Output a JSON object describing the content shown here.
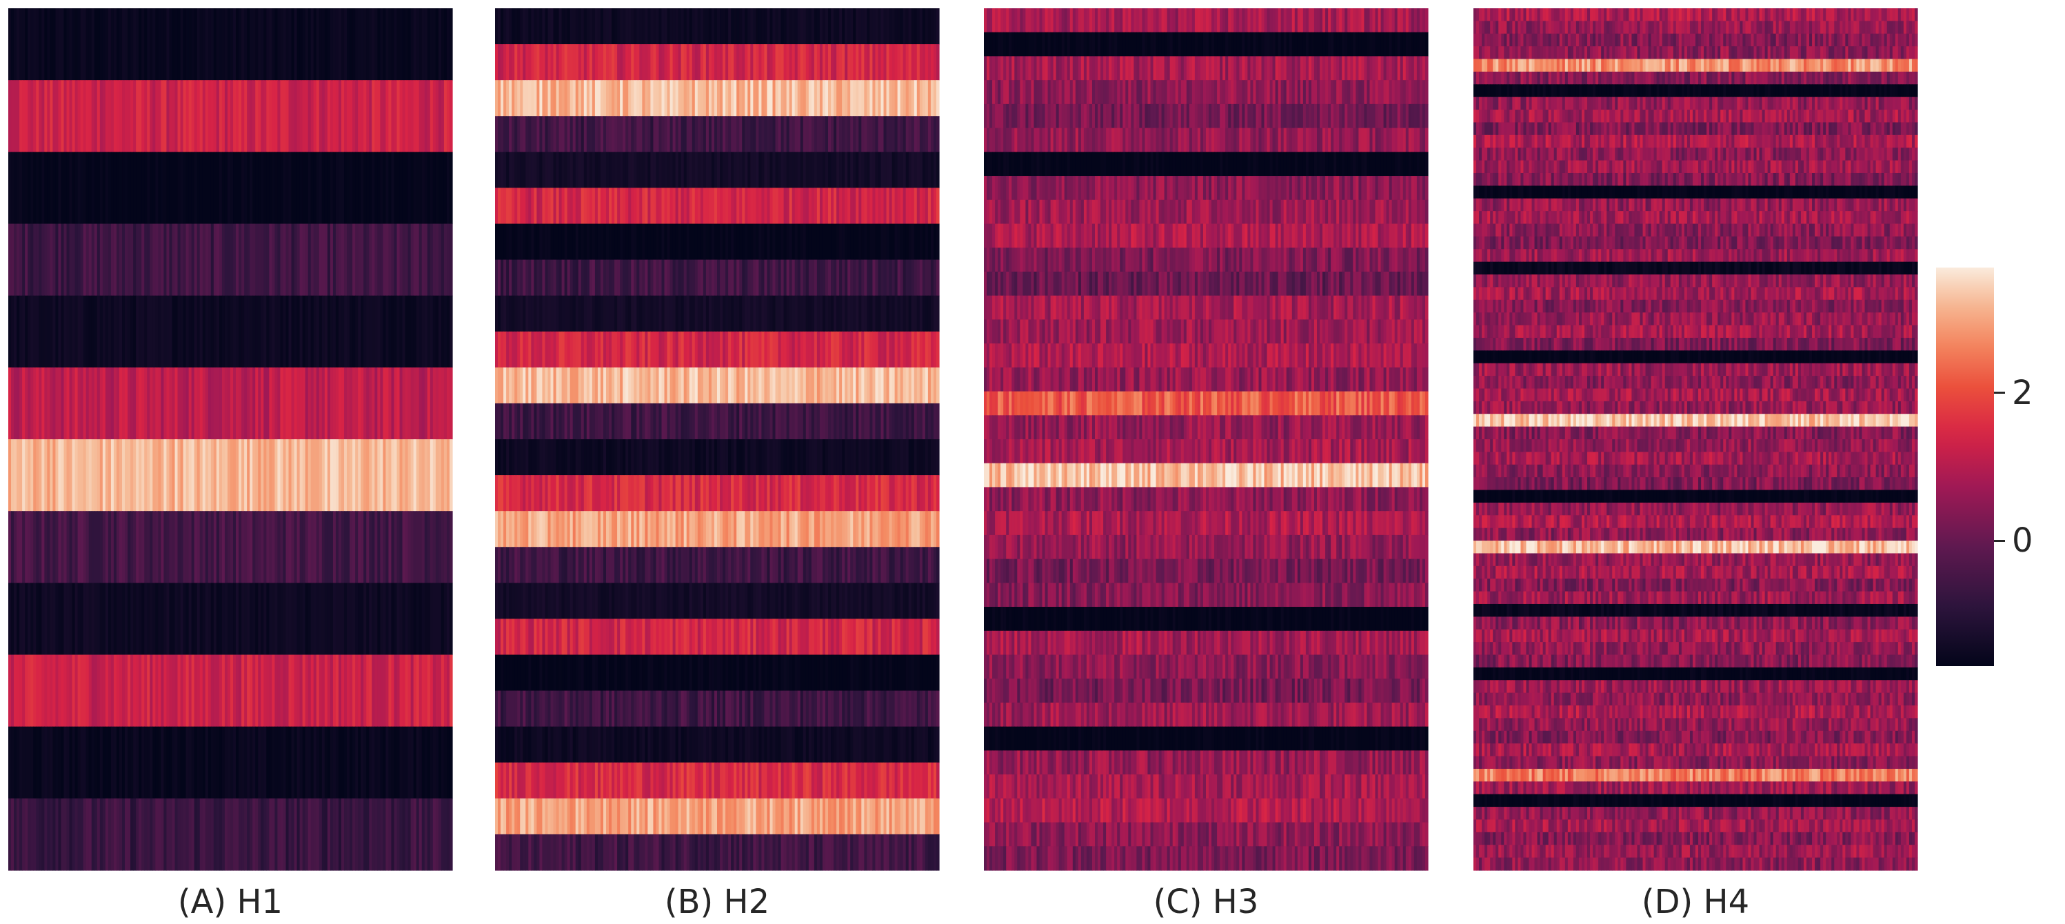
{
  "chart_data": [
    {
      "type": "heatmap",
      "label": "(A) H1",
      "columns": 160,
      "row_means": [
        -1.6,
        1.3,
        -1.7,
        -0.6,
        -1.5,
        1.1,
        3.2,
        -0.5,
        -1.5,
        1.3,
        -1.6,
        -0.7
      ],
      "row_spread": 0.4
    },
    {
      "type": "heatmap",
      "label": "(B) H2",
      "columns": 160,
      "row_means": [
        -1.5,
        1.4,
        3.2,
        -0.6,
        -1.4,
        1.4,
        -1.7,
        -0.6,
        -1.4,
        1.4,
        3.2,
        -0.6,
        -1.5,
        1.5,
        3.0,
        -0.6,
        -1.4,
        1.4,
        -1.7,
        -0.6,
        -1.5,
        1.5,
        3.0,
        -0.6
      ],
      "row_spread": 0.45
    },
    {
      "type": "heatmap",
      "label": "(C) H3",
      "columns": 160,
      "row_means": [
        0.8,
        -1.7,
        0.8,
        0.5,
        0.2,
        0.6,
        -1.7,
        0.5,
        0.7,
        0.9,
        0.3,
        0.0,
        0.8,
        0.7,
        0.9,
        0.6,
        2.2,
        0.6,
        0.8,
        3.3,
        0.5,
        0.9,
        0.6,
        0.2,
        0.4,
        -1.7,
        0.8,
        0.5,
        0.2,
        0.7,
        -1.7,
        0.6,
        0.8,
        1.0,
        0.5,
        0.3
      ],
      "row_spread": 0.55
    },
    {
      "type": "heatmap",
      "label": "(D) H4",
      "columns": 160,
      "row_means": [
        0.9,
        0.6,
        0.4,
        0.5,
        2.8,
        0.4,
        -1.7,
        0.6,
        0.8,
        0.3,
        0.9,
        0.5,
        0.7,
        0.4,
        -1.7,
        0.6,
        0.8,
        0.5,
        0.3,
        0.7,
        -1.6,
        0.6,
        0.8,
        0.4,
        0.6,
        0.8,
        0.3,
        -1.7,
        0.7,
        0.5,
        0.8,
        0.6,
        3.4,
        0.4,
        0.6,
        0.8,
        0.5,
        0.3,
        -1.7,
        0.6,
        0.9,
        0.5,
        3.3,
        0.6,
        0.8,
        0.4,
        0.7,
        -1.6,
        0.5,
        0.8,
        0.6,
        0.4,
        -1.7,
        0.7,
        0.5,
        0.9,
        0.6,
        0.4,
        0.8,
        0.5,
        2.6,
        0.7,
        -1.7,
        0.6,
        0.8,
        0.4,
        0.7,
        0.5
      ],
      "row_spread": 0.6
    }
  ],
  "colorbar": {
    "min": -1.7,
    "max": 3.7,
    "ticks": [
      {
        "value": 2,
        "label": "2"
      },
      {
        "value": 0,
        "label": "0"
      }
    ]
  }
}
